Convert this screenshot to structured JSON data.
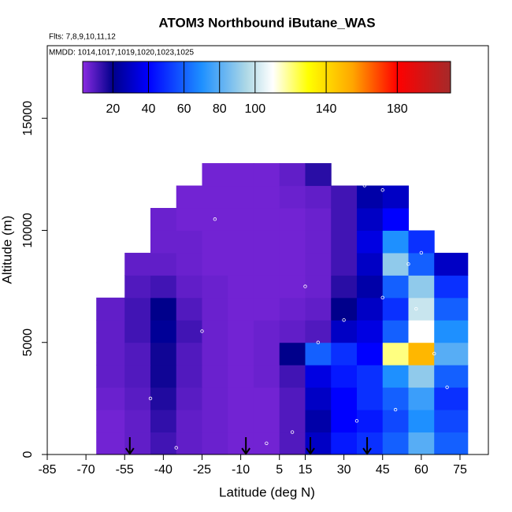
{
  "chart_data": {
    "type": "heatmap",
    "title": "ATOM3 Northbound iButane_WAS",
    "subtitle": "Flts: 7,8,9,10,11,12",
    "annotation": "MMDD: 1014,1017,1019,1020,1023,1025",
    "x_label": "Latitude (deg N)",
    "y_label": "Altitude (m)",
    "xlim": [
      -85,
      86
    ],
    "ylim": [
      0,
      18240
    ],
    "xticks": [
      -85,
      -70,
      -55,
      -40,
      -25,
      -10,
      5,
      15,
      30,
      45,
      60,
      75
    ],
    "yticks": [
      0,
      5000,
      10000,
      15000
    ],
    "grid": {
      "x_edges": [
        -66,
        -55,
        -45,
        -35,
        -25,
        -15,
        -5,
        5,
        15,
        25,
        35,
        45,
        55,
        65,
        78
      ],
      "y_edges": [
        0,
        1000,
        2000,
        3000,
        4000,
        5000,
        6000,
        7000,
        8000,
        9000,
        10000,
        11000,
        12000,
        13000
      ],
      "values": [
        [
          6,
          8,
          12,
          8,
          7,
          6,
          6,
          10,
          30,
          45,
          50,
          60,
          80,
          60
        ],
        [
          6,
          8,
          14,
          8,
          7,
          6,
          6,
          10,
          25,
          40,
          45,
          55,
          70,
          55
        ],
        [
          7,
          9,
          16,
          9,
          7,
          6,
          6,
          10,
          30,
          40,
          50,
          60,
          75,
          50
        ],
        [
          8,
          10,
          18,
          10,
          7,
          6,
          7,
          12,
          35,
          45,
          50,
          70,
          90,
          60
        ],
        [
          8,
          10,
          18,
          10,
          7,
          6,
          7,
          20,
          60,
          50,
          40,
          120,
          150,
          80
        ],
        [
          8,
          12,
          22,
          12,
          7,
          6,
          7,
          8,
          10,
          30,
          35,
          60,
          110,
          70
        ],
        [
          8,
          12,
          20,
          10,
          7,
          6,
          6,
          7,
          8,
          20,
          30,
          50,
          100,
          60
        ],
        [
          null,
          10,
          12,
          8,
          7,
          6,
          6,
          6,
          7,
          15,
          25,
          60,
          90,
          50
        ],
        [
          null,
          8,
          8,
          7,
          6,
          6,
          6,
          6,
          7,
          12,
          30,
          90,
          60,
          30
        ],
        [
          null,
          null,
          7,
          7,
          6,
          6,
          6,
          6,
          7,
          12,
          35,
          70,
          50,
          null
        ],
        [
          null,
          null,
          7,
          6,
          6,
          6,
          6,
          6,
          7,
          12,
          30,
          40,
          null,
          null
        ],
        [
          null,
          null,
          null,
          6,
          6,
          6,
          6,
          7,
          8,
          12,
          25,
          30,
          null,
          null
        ],
        [
          null,
          null,
          null,
          null,
          6,
          6,
          6,
          8,
          15,
          null,
          null,
          null,
          null,
          null
        ]
      ]
    },
    "colorbar": {
      "lim": [
        3,
        210
      ],
      "ticks": [
        20,
        40,
        60,
        80,
        100,
        140,
        180
      ],
      "stops": [
        {
          "value": 3,
          "color": "#8a2be2"
        },
        {
          "value": 20,
          "color": "#00008b"
        },
        {
          "value": 40,
          "color": "#0000ff"
        },
        {
          "value": 70,
          "color": "#1e90ff"
        },
        {
          "value": 95,
          "color": "#add8e6"
        },
        {
          "value": 110,
          "color": "#ffffff"
        },
        {
          "value": 130,
          "color": "#ffff00"
        },
        {
          "value": 155,
          "color": "#ffa500"
        },
        {
          "value": 180,
          "color": "#ff0000"
        },
        {
          "value": 210,
          "color": "#a52a2a"
        }
      ]
    },
    "samples": {
      "x": [
        38,
        45,
        60,
        55,
        45,
        30,
        20,
        65,
        70,
        50,
        35,
        10,
        -20,
        -60,
        -25,
        -45,
        0,
        -35,
        15,
        58
      ],
      "y": [
        12000,
        11800,
        9000,
        8500,
        7000,
        6000,
        5000,
        4500,
        3000,
        2000,
        1500,
        1000,
        10500,
        9800,
        5500,
        2500,
        500,
        300,
        7500,
        6500
      ],
      "color": "#ffffff"
    },
    "markers": [
      -53,
      -8,
      17,
      39
    ]
  }
}
